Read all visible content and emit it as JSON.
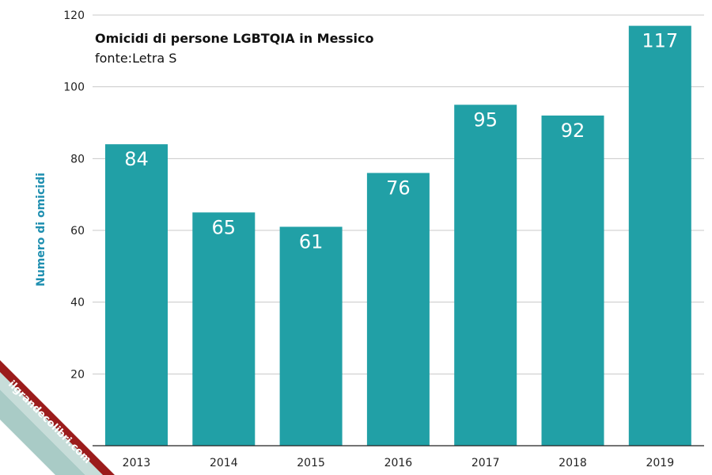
{
  "chart_data": {
    "type": "bar",
    "title": "Omicidi di persone LGBTQIA in Messico",
    "subtitle": "fonte:Letra S",
    "xlabel": "",
    "ylabel": "Numero di omicidi",
    "categories": [
      "2013",
      "2014",
      "2015",
      "2016",
      "2017",
      "2018",
      "2019"
    ],
    "values": [
      84,
      65,
      61,
      76,
      95,
      92,
      117
    ],
    "ylim": [
      0,
      120
    ],
    "yticks": [
      20,
      40,
      60,
      80,
      100,
      120
    ],
    "grid": true,
    "data_labels": "inside-top"
  },
  "colors": {
    "bar": "#21a0a6",
    "ylabel": "#1f8fb0",
    "grid": "#c8c8c8",
    "axis": "#222222",
    "watermark_dark": "#9b1c1c",
    "watermark_mid": "#c7ddd9",
    "watermark_light": "#a9cbc6"
  },
  "watermark": {
    "text": "ilgrandecolibri.com"
  }
}
